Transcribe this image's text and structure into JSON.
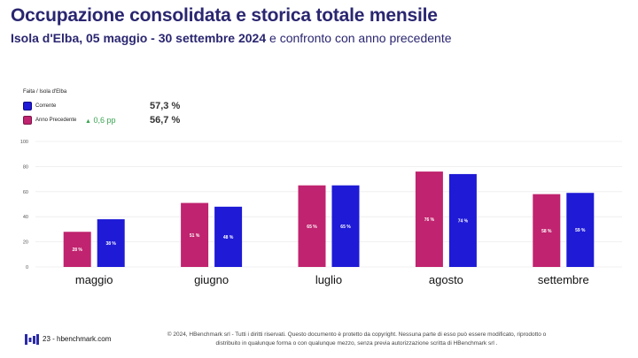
{
  "header": {
    "title": "Occupazione consolidata e storica totale mensile",
    "subtitle_bold": "Isola d'Elba, 05 maggio - 30 settembre 2024",
    "subtitle_rest": " e confronto con anno precedente"
  },
  "legend": {
    "scope": "Faita / Isola d'Elba",
    "current": {
      "label": "Corrente",
      "value": "57,3 %"
    },
    "previous": {
      "label": "Anno Precedente",
      "delta": "0,6 pp",
      "value": "56,7 %"
    }
  },
  "chart_data": {
    "type": "bar",
    "categories": [
      "maggio",
      "giugno",
      "luglio",
      "agosto",
      "settembre"
    ],
    "series": [
      {
        "name": "Anno Precedente",
        "color": "#c0236f",
        "values": [
          28,
          51,
          65,
          76,
          58
        ],
        "labels": [
          "28 %",
          "51 %",
          "65 %",
          "76 %",
          "58 %"
        ]
      },
      {
        "name": "Corrente",
        "color": "#1e1ad6",
        "values": [
          38,
          48,
          65,
          74,
          59
        ],
        "labels": [
          "38 %",
          "48 %",
          "65 %",
          "74 %",
          "59 %"
        ]
      }
    ],
    "yticks": [
      "0",
      "20",
      "40",
      "60",
      "80",
      "100"
    ],
    "ylim": [
      0,
      100
    ],
    "grid": true,
    "legend_position": "top-left"
  },
  "footer": {
    "brand": "23 - hbenchmark.com",
    "copyright_line1": "© 2024, HBenchmark srl - Tutti i diritti riservati. Questo documento è protetto da copyright. Nessuna parte di esso può essere modificato, riprodotto o",
    "copyright_line2": "distribuito in qualunque forma o con qualunque mezzo, senza previa autorizzazione scritta di HBenchmark srl ."
  }
}
